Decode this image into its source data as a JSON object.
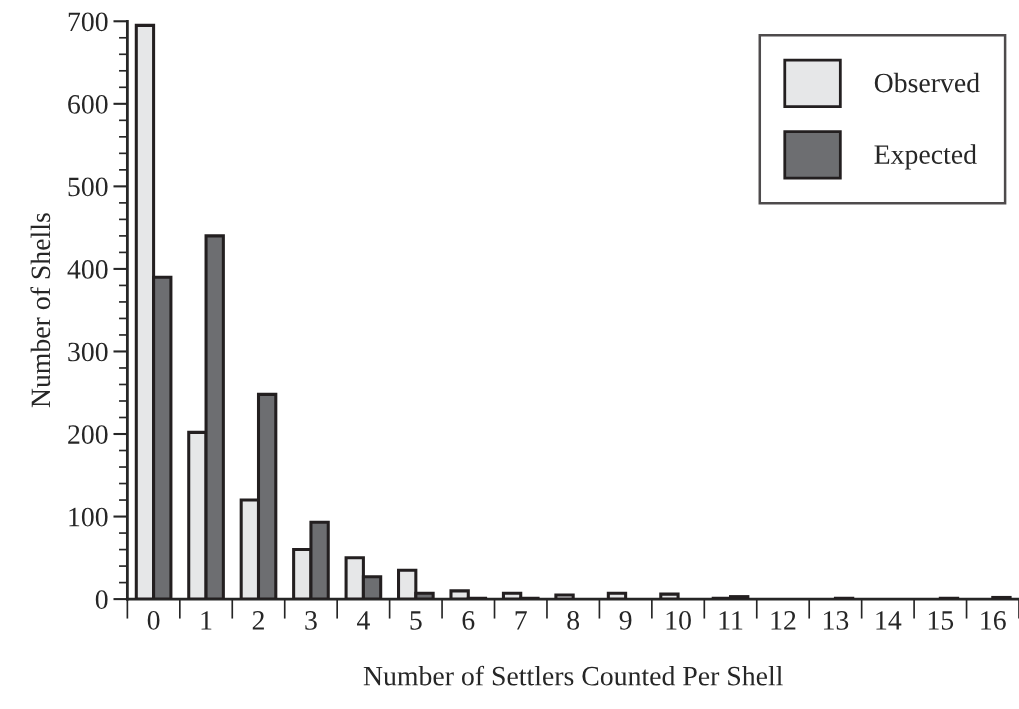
{
  "chart_data": {
    "type": "bar",
    "xlabel": "Number of Settlers Counted Per Shell",
    "ylabel": "Number of Shells",
    "categories": [
      "0",
      "1",
      "2",
      "3",
      "4",
      "5",
      "6",
      "7",
      "8",
      "9",
      "10",
      "11",
      "12",
      "13",
      "14",
      "15",
      "16"
    ],
    "series": [
      {
        "name": "Observed",
        "color": "#e6e7e8",
        "values": [
          695,
          202,
          120,
          60,
          50,
          35,
          10,
          7,
          5,
          7,
          6,
          1,
          0,
          0,
          0,
          0,
          0
        ]
      },
      {
        "name": "Expected",
        "color": "#6d6e71",
        "values": [
          390,
          440,
          248,
          93,
          27,
          7,
          1,
          1,
          0,
          0,
          0,
          3,
          0,
          1,
          0,
          1,
          2
        ]
      }
    ],
    "ylim": [
      0,
      700
    ],
    "yticks": [
      0,
      100,
      200,
      300,
      400,
      500,
      600,
      700
    ],
    "grid": false,
    "legend": "top right"
  }
}
